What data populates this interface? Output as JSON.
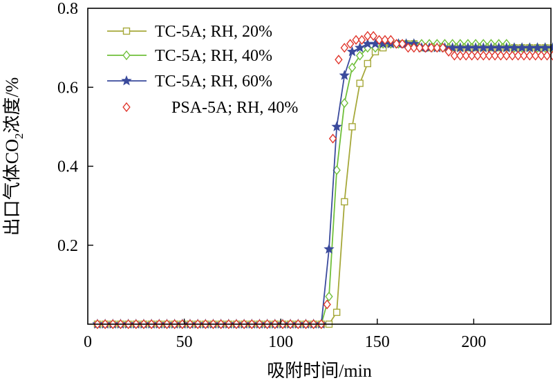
{
  "chart_data": {
    "type": "line",
    "title": "",
    "xlabel": "吸附时间/min",
    "ylabel": {
      "prefix": "出口气体CO",
      "sub": "2",
      "suffix": "浓度/%"
    },
    "xlim": [
      0,
      240
    ],
    "ylim": [
      0,
      0.8
    ],
    "x_ticks": [
      0,
      50,
      100,
      150,
      200
    ],
    "y_ticks": [
      0.2,
      0.4,
      0.6,
      0.8
    ],
    "x_tick_labels": [
      "0",
      "50",
      "100",
      "150",
      "200"
    ],
    "y_tick_labels": [
      "0.2",
      "0.4",
      "0.6",
      "0.8"
    ],
    "legend_position": "top-left",
    "series": [
      {
        "name": "TC-5A; RH, 20%",
        "color": "#a6a83a",
        "marker": "square",
        "line": true,
        "x": [
          5,
          9,
          13,
          17,
          21,
          25,
          29,
          33,
          37,
          41,
          45,
          49,
          53,
          57,
          61,
          65,
          69,
          73,
          77,
          81,
          85,
          89,
          93,
          97,
          101,
          105,
          109,
          113,
          117,
          121,
          125,
          129,
          133,
          137,
          141,
          145,
          149,
          153,
          157,
          161,
          165,
          169,
          173,
          177,
          181,
          185,
          189,
          193,
          197,
          201,
          205,
          209,
          213,
          217,
          221,
          225,
          229,
          233,
          237,
          241
        ],
        "y": [
          0,
          0,
          0,
          0,
          0,
          0,
          0,
          0,
          0,
          0,
          0,
          0,
          0,
          0,
          0,
          0,
          0,
          0,
          0,
          0,
          0,
          0,
          0,
          0,
          0,
          0,
          0,
          0,
          0,
          0,
          0,
          0.03,
          0.31,
          0.5,
          0.61,
          0.66,
          0.69,
          0.7,
          0.71,
          0.71,
          0.71,
          0.71,
          0.7,
          0.7,
          0.7,
          0.7,
          0.7,
          0.7,
          0.7,
          0.7,
          0.7,
          0.7,
          0.7,
          0.7,
          0.7,
          0.7,
          0.7,
          0.7,
          0.7,
          0.7
        ]
      },
      {
        "name": "TC-5A; RH, 40%",
        "color": "#6fbf3a",
        "marker": "diamond",
        "line": true,
        "x": [
          5,
          9,
          13,
          17,
          21,
          25,
          29,
          33,
          37,
          41,
          45,
          49,
          53,
          57,
          61,
          65,
          69,
          73,
          77,
          81,
          85,
          89,
          93,
          97,
          101,
          105,
          109,
          113,
          117,
          121,
          125,
          129,
          133,
          137,
          141,
          145,
          149,
          153,
          157,
          161,
          165,
          169,
          173,
          177,
          181,
          185,
          189,
          193,
          197,
          201,
          205,
          209,
          213,
          217,
          221,
          225,
          229,
          233,
          237,
          241
        ],
        "y": [
          0,
          0,
          0,
          0,
          0,
          0,
          0,
          0,
          0,
          0,
          0,
          0,
          0,
          0,
          0,
          0,
          0,
          0,
          0,
          0,
          0,
          0,
          0,
          0,
          0,
          0,
          0,
          0,
          0,
          0,
          0.07,
          0.39,
          0.56,
          0.65,
          0.68,
          0.7,
          0.7,
          0.71,
          0.71,
          0.71,
          0.71,
          0.71,
          0.71,
          0.71,
          0.71,
          0.71,
          0.71,
          0.71,
          0.71,
          0.71,
          0.71,
          0.71,
          0.71,
          0.71,
          0.7,
          0.7,
          0.7,
          0.7,
          0.7,
          0.7
        ]
      },
      {
        "name": "TC-5A; RH, 60%",
        "color": "#3a4a9c",
        "marker": "star",
        "line": true,
        "x": [
          5,
          9,
          13,
          17,
          21,
          25,
          29,
          33,
          37,
          41,
          45,
          49,
          53,
          57,
          61,
          65,
          69,
          73,
          77,
          81,
          85,
          89,
          93,
          97,
          101,
          105,
          109,
          113,
          117,
          121,
          125,
          129,
          133,
          137,
          141,
          145,
          149,
          153,
          157,
          161,
          165,
          169,
          173,
          177,
          181,
          185,
          189,
          193,
          197,
          201,
          205,
          209,
          213,
          217,
          221,
          225,
          229,
          233,
          237,
          241
        ],
        "y": [
          0,
          0,
          0,
          0,
          0,
          0,
          0,
          0,
          0,
          0,
          0,
          0,
          0,
          0,
          0,
          0,
          0,
          0,
          0,
          0,
          0,
          0,
          0,
          0,
          0,
          0,
          0,
          0,
          0,
          0,
          0.19,
          0.5,
          0.63,
          0.69,
          0.7,
          0.71,
          0.71,
          0.71,
          0.71,
          0.71,
          0.71,
          0.71,
          0.7,
          0.7,
          0.7,
          0.7,
          0.7,
          0.7,
          0.7,
          0.7,
          0.7,
          0.7,
          0.7,
          0.7,
          0.7,
          0.7,
          0.7,
          0.7,
          0.7,
          0.7
        ]
      },
      {
        "name": "PSA-5A; RH, 40%",
        "color": "#e0352b",
        "marker": "diamond",
        "line": false,
        "x": [
          5,
          9,
          13,
          17,
          21,
          25,
          29,
          33,
          37,
          41,
          45,
          49,
          53,
          57,
          61,
          65,
          69,
          73,
          77,
          81,
          85,
          89,
          93,
          97,
          101,
          105,
          109,
          113,
          117,
          121,
          124,
          127,
          130,
          133,
          136,
          139,
          142,
          145,
          148,
          151,
          154,
          157,
          160,
          163,
          166,
          169,
          172,
          175,
          178,
          181,
          184,
          187,
          190,
          193,
          196,
          199,
          202,
          205,
          208,
          211,
          214,
          217,
          220,
          223,
          226,
          229,
          232,
          235,
          238,
          241
        ],
        "y": [
          0,
          0,
          0,
          0,
          0,
          0,
          0,
          0,
          0,
          0,
          0,
          0,
          0,
          0,
          0,
          0,
          0,
          0,
          0,
          0,
          0,
          0,
          0,
          0,
          0,
          0,
          0,
          0,
          0,
          0,
          0.05,
          0.47,
          0.67,
          0.7,
          0.71,
          0.72,
          0.72,
          0.73,
          0.73,
          0.72,
          0.72,
          0.72,
          0.71,
          0.71,
          0.7,
          0.7,
          0.7,
          0.7,
          0.7,
          0.7,
          0.7,
          0.69,
          0.68,
          0.68,
          0.68,
          0.68,
          0.68,
          0.68,
          0.68,
          0.68,
          0.68,
          0.68,
          0.68,
          0.68,
          0.68,
          0.68,
          0.68,
          0.68,
          0.68,
          0.68
        ]
      }
    ]
  }
}
